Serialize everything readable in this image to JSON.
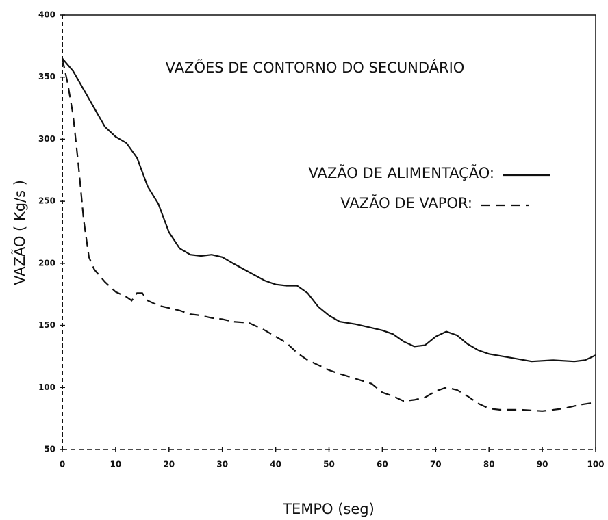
{
  "chart_data": {
    "type": "line",
    "title": "VAZÕES DE CONTORNO DO SECUNDÁRIO",
    "xlabel": "TEMPO (seg)",
    "ylabel": "VAZÃO ( Kg/s )",
    "xlim": [
      0,
      100
    ],
    "xticks": [
      0,
      10,
      20,
      30,
      40,
      50,
      60,
      70,
      80,
      90,
      100
    ],
    "ylim": [
      50,
      400
    ],
    "yticks": [
      50,
      100,
      150,
      200,
      250,
      300,
      350,
      400
    ],
    "series": [
      {
        "name": "VAZÃO DE ALIMENTAÇÃO:",
        "color": "#111111",
        "dash": "solid",
        "x": [
          0,
          2,
          4,
          6,
          8,
          10,
          12,
          14,
          16,
          18,
          20,
          22,
          24,
          26,
          28,
          30,
          32,
          35,
          38,
          40,
          42,
          44,
          46,
          48,
          50,
          52,
          55,
          58,
          60,
          62,
          64,
          66,
          68,
          70,
          72,
          74,
          76,
          78,
          80,
          84,
          88,
          92,
          96,
          98,
          100
        ],
        "values": [
          365,
          355,
          340,
          325,
          310,
          302,
          297,
          285,
          262,
          248,
          225,
          212,
          207,
          206,
          207,
          205,
          200,
          193,
          186,
          183,
          182,
          182,
          176,
          165,
          158,
          153,
          151,
          148,
          146,
          143,
          137,
          133,
          134,
          141,
          145,
          142,
          135,
          130,
          127,
          124,
          121,
          122,
          121,
          122,
          126
        ]
      },
      {
        "name": "VAZÃO DE VAPOR:",
        "color": "#111111",
        "dash": "dashed",
        "x": [
          0,
          1,
          2,
          3,
          4,
          5,
          6,
          8,
          10,
          12,
          13,
          14,
          15,
          16,
          18,
          20,
          22,
          24,
          26,
          28,
          30,
          32,
          35,
          38,
          40,
          42,
          44,
          46,
          48,
          50,
          52,
          55,
          58,
          60,
          62,
          64,
          66,
          68,
          70,
          72,
          74,
          76,
          78,
          80,
          82,
          86,
          90,
          94,
          97,
          100
        ],
        "values": [
          365,
          345,
          320,
          280,
          235,
          205,
          195,
          185,
          177,
          173,
          170,
          176,
          176,
          170,
          166,
          164,
          162,
          159,
          158,
          156,
          155,
          153,
          152,
          146,
          141,
          136,
          128,
          122,
          118,
          114,
          111,
          107,
          103,
          96,
          93,
          89,
          90,
          92,
          97,
          100,
          98,
          93,
          87,
          83,
          82,
          82,
          81,
          83,
          86,
          88
        ]
      }
    ]
  }
}
